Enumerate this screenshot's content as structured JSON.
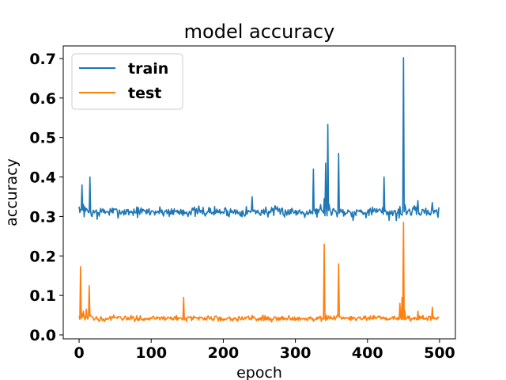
{
  "chart_data": {
    "type": "line",
    "title": "model accuracy",
    "xlabel": "epoch",
    "ylabel": "accuracy",
    "xlim": [
      -22,
      522
    ],
    "ylim": [
      -0.01,
      0.732
    ],
    "xticks": [
      0,
      100,
      200,
      300,
      400,
      500
    ],
    "yticks": [
      0.0,
      0.1,
      0.2,
      0.3,
      0.4,
      0.5,
      0.6,
      0.7
    ],
    "ytick_labels": [
      "0.0",
      "0.1",
      "0.2",
      "0.3",
      "0.4",
      "0.5",
      "0.6",
      "0.7"
    ],
    "legend_position": "upper left",
    "grid": false,
    "series": [
      {
        "name": "train",
        "color": "#1f77b4",
        "baseline": 0.312,
        "noise": 0.009,
        "x_range": [
          0,
          499
        ],
        "spikes": [
          [
            0,
            0.325
          ],
          [
            1,
            0.31
          ],
          [
            2,
            0.318
          ],
          [
            4,
            0.38
          ],
          [
            6,
            0.33
          ],
          [
            10,
            0.32
          ],
          [
            15,
            0.4
          ],
          [
            18,
            0.3
          ],
          [
            25,
            0.293
          ],
          [
            240,
            0.35
          ],
          [
            325,
            0.42
          ],
          [
            335,
            0.33
          ],
          [
            340,
            0.345
          ],
          [
            342,
            0.435
          ],
          [
            345,
            0.533
          ],
          [
            347,
            0.33
          ],
          [
            360,
            0.46
          ],
          [
            380,
            0.29
          ],
          [
            423,
            0.4
          ],
          [
            430,
            0.29
          ],
          [
            440,
            0.29
          ],
          [
            450,
            0.702
          ],
          [
            452,
            0.33
          ],
          [
            470,
            0.34
          ],
          [
            490,
            0.335
          ],
          [
            499,
            0.323
          ]
        ]
      },
      {
        "name": "test",
        "color": "#ff7f0e",
        "baseline": 0.042,
        "noise": 0.005,
        "x_range": [
          0,
          499
        ],
        "spikes": [
          [
            0,
            0.048
          ],
          [
            2,
            0.173
          ],
          [
            4,
            0.055
          ],
          [
            6,
            0.06
          ],
          [
            8,
            0.038
          ],
          [
            10,
            0.065
          ],
          [
            14,
            0.125
          ],
          [
            16,
            0.05
          ],
          [
            145,
            0.095
          ],
          [
            340,
            0.23
          ],
          [
            343,
            0.05
          ],
          [
            360,
            0.18
          ],
          [
            363,
            0.045
          ],
          [
            445,
            0.08
          ],
          [
            448,
            0.095
          ],
          [
            450,
            0.285
          ],
          [
            452,
            0.06
          ],
          [
            470,
            0.06
          ],
          [
            490,
            0.07
          ],
          [
            499,
            0.042
          ]
        ]
      }
    ]
  }
}
